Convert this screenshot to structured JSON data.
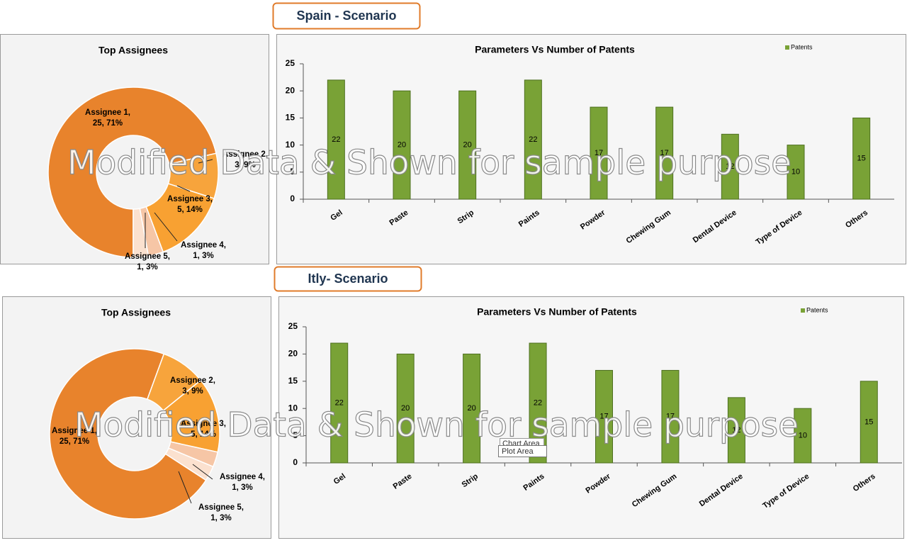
{
  "scenarios": [
    "Spain - Scenario",
    "Itly- Scenario"
  ],
  "watermark": "Modified Data & Shown for sample purpose",
  "tooltip": [
    "Chart Area",
    "Plot Area"
  ],
  "chart_data": [
    {
      "type": "donut",
      "title": "Top Assignees",
      "categories": [
        "Assignee 1",
        "Assignee 2",
        "Assignee 3",
        "Assignee 4",
        "Assignee 5"
      ],
      "values": [
        25,
        3,
        5,
        1,
        1
      ],
      "value_labels": [
        [
          "Assignee 1,",
          "25, 71%"
        ],
        [
          "Assignee 2,",
          "3, 9%"
        ],
        [
          "Assignee 3,",
          "5, 14%"
        ],
        [
          "Assignee 4,",
          "1, 3%"
        ],
        [
          "Assignee 5,",
          "1, 3%"
        ]
      ],
      "colors": [
        "#e8832c",
        "#f7a43c",
        "#f8a132",
        "#f6c6a6",
        "#fbe1cf"
      ]
    },
    {
      "type": "bar",
      "title": "Parameters Vs Number of Patents",
      "categories": [
        "Gel",
        "Paste",
        "Strip",
        "Paints",
        "Powder",
        "Chewing Gum",
        "Dental Device",
        "Type of Device",
        "Others"
      ],
      "series": [
        {
          "name": "Patents",
          "color": "#79a236",
          "values": [
            22,
            20,
            20,
            22,
            17,
            17,
            12,
            10,
            15
          ]
        }
      ],
      "ylim": [
        0,
        25
      ],
      "yticks": [
        0,
        5,
        10,
        15,
        20,
        25
      ],
      "grid": false,
      "legend": "top-right"
    },
    {
      "type": "donut",
      "title": "Top Assignees",
      "categories": [
        "Assignee 1",
        "Assignee 2",
        "Assignee 3",
        "Assignee 4",
        "Assignee 5"
      ],
      "values": [
        25,
        3,
        5,
        1,
        1
      ],
      "value_labels": [
        [
          "Assignee 1,",
          "25, 71%"
        ],
        [
          "Assignee 2,",
          "3, 9%"
        ],
        [
          "Assignee 3,",
          "5, 14%"
        ],
        [
          "Assignee 4,",
          "1, 3%"
        ],
        [
          "Assignee 5,",
          "1, 3%"
        ]
      ],
      "colors": [
        "#e8832c",
        "#f7a43c",
        "#f8a132",
        "#f6c6a6",
        "#fbe1cf"
      ]
    },
    {
      "type": "bar",
      "title": "Parameters Vs Number of Patents",
      "categories": [
        "Gel",
        "Paste",
        "Strip",
        "Paints",
        "Powder",
        "Chewing Gum",
        "Dental Device",
        "Type of Device",
        "Others"
      ],
      "series": [
        {
          "name": "Patents",
          "color": "#79a236",
          "values": [
            22,
            20,
            20,
            22,
            17,
            17,
            12,
            10,
            15
          ]
        }
      ],
      "ylim": [
        0,
        25
      ],
      "yticks": [
        0,
        5,
        10,
        15,
        20,
        25
      ],
      "grid": false,
      "legend": "top-right"
    }
  ]
}
